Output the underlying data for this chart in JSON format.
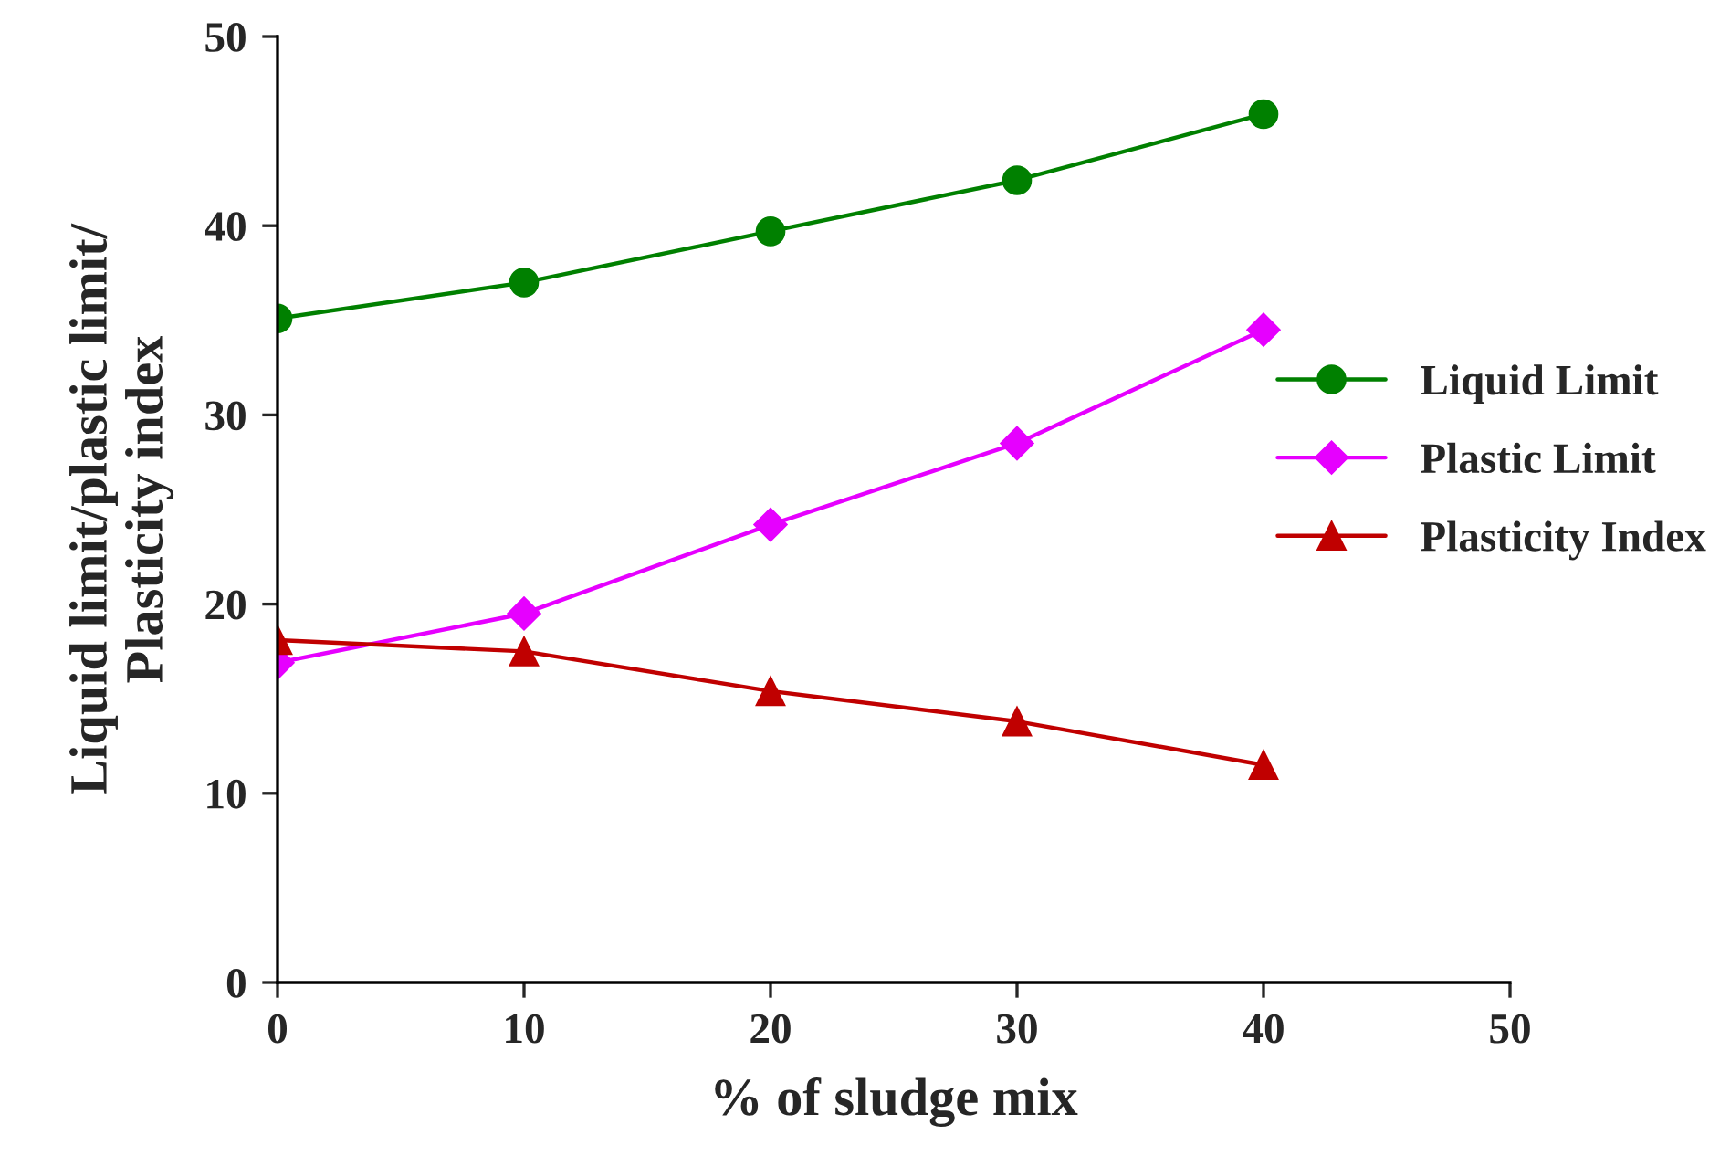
{
  "chart_data": {
    "type": "line",
    "xlabel": "% of sludge mix",
    "ylabel": "Liquid limit/plastic limit/\nPlasticity index",
    "x": [
      0,
      10,
      20,
      30,
      40
    ],
    "series": [
      {
        "name": "Liquid Limit",
        "color": "#008000",
        "marker": "circle",
        "values": [
          35.1,
          37.0,
          39.7,
          42.4,
          45.9
        ]
      },
      {
        "name": "Plastic Limit",
        "color": "#e600ff",
        "marker": "diamond",
        "values": [
          16.9,
          19.5,
          24.2,
          28.5,
          34.5
        ]
      },
      {
        "name": "Plasticity Index",
        "color": "#c00000",
        "marker": "triangle",
        "values": [
          18.1,
          17.5,
          15.4,
          13.8,
          11.5
        ]
      }
    ],
    "xlim": [
      0,
      50
    ],
    "xticks": [
      0,
      10,
      20,
      30,
      40,
      50
    ],
    "ylim": [
      0,
      50
    ],
    "yticks": [
      0,
      10,
      20,
      30,
      40,
      50
    ],
    "grid": false,
    "legend": "right",
    "line_style": "solid"
  }
}
